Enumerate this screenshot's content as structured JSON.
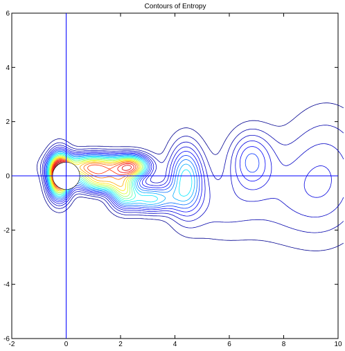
{
  "chart_data": {
    "type": "contour",
    "title": "Contours of Entropy",
    "xlabel": "",
    "ylabel": "",
    "xlim": [
      -2,
      10
    ],
    "ylim": [
      -6,
      6
    ],
    "xticks": [
      "-2",
      "0",
      "2",
      "4",
      "6",
      "8",
      "10"
    ],
    "yticks": [
      "-6",
      "-4",
      "-2",
      "0",
      "2",
      "4",
      "6"
    ],
    "reference_lines": {
      "x": 0,
      "y": 0
    },
    "cylinder": {
      "cx": 0,
      "cy": 0,
      "r": 0.5
    },
    "colormap": [
      "#00008f",
      "#0000ff",
      "#00ffff",
      "#ffff00",
      "#ff0000",
      "#800000"
    ]
  }
}
